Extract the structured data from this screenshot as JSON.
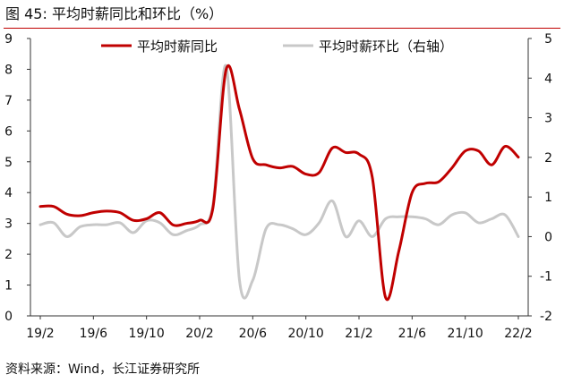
{
  "header": {
    "figure_label": "图 45:",
    "title": "平均时薪同比和环比（%）"
  },
  "footer": {
    "source": "资料来源：Wind，长江证券研究所"
  },
  "colors": {
    "yoy": "#c00000",
    "mom": "#c8c8c8",
    "axis": "#333333"
  },
  "chart_data": {
    "type": "line",
    "title": "平均时薪同比和环比（%）",
    "x_tick_labels": [
      "19/2",
      "19/6",
      "19/10",
      "20/2",
      "20/6",
      "20/10",
      "21/2",
      "21/6",
      "21/10",
      "22/2"
    ],
    "x_ticks_index": [
      0,
      4,
      8,
      12,
      16,
      20,
      24,
      28,
      32,
      36
    ],
    "y_left": {
      "range": [
        0,
        9
      ],
      "ticks": [
        0,
        1,
        2,
        3,
        4,
        5,
        6,
        7,
        8,
        9
      ]
    },
    "y_right": {
      "range": [
        -2,
        5
      ],
      "ticks": [
        -2,
        -1,
        0,
        1,
        2,
        3,
        4,
        5
      ]
    },
    "x": [
      "2019-02",
      "2019-03",
      "2019-04",
      "2019-05",
      "2019-06",
      "2019-07",
      "2019-08",
      "2019-09",
      "2019-10",
      "2019-11",
      "2019-12",
      "2020-01",
      "2020-02",
      "2020-03",
      "2020-04",
      "2020-05",
      "2020-06",
      "2020-07",
      "2020-08",
      "2020-09",
      "2020-10",
      "2020-11",
      "2020-12",
      "2021-01",
      "2021-02",
      "2021-03",
      "2021-04",
      "2021-05",
      "2021-06",
      "2021-07",
      "2021-08",
      "2021-09",
      "2021-10",
      "2021-11",
      "2021-12",
      "2022-01",
      "2022-02"
    ],
    "legend_position": "top",
    "series": [
      {
        "name": "平均时薪同比",
        "axis": "left",
        "values": [
          3.55,
          3.55,
          3.3,
          3.25,
          3.35,
          3.4,
          3.35,
          3.1,
          3.15,
          3.35,
          2.95,
          3.0,
          3.1,
          3.5,
          8.0,
          6.7,
          5.1,
          4.9,
          4.8,
          4.85,
          4.6,
          4.65,
          5.45,
          5.3,
          5.25,
          4.5,
          0.6,
          2.1,
          4.0,
          4.3,
          4.35,
          4.8,
          5.35,
          5.35,
          4.9,
          5.5,
          5.15
        ]
      },
      {
        "name": "平均时薪环比（右轴）",
        "axis": "right",
        "values": [
          0.3,
          0.35,
          0.0,
          0.25,
          0.3,
          0.3,
          0.35,
          0.1,
          0.4,
          0.35,
          0.05,
          0.15,
          0.3,
          0.8,
          4.3,
          -1.1,
          -1.1,
          0.2,
          0.3,
          0.2,
          0.05,
          0.35,
          0.9,
          0.0,
          0.4,
          0.0,
          0.45,
          0.5,
          0.5,
          0.45,
          0.3,
          0.55,
          0.6,
          0.35,
          0.45,
          0.55,
          0.0
        ]
      }
    ]
  }
}
